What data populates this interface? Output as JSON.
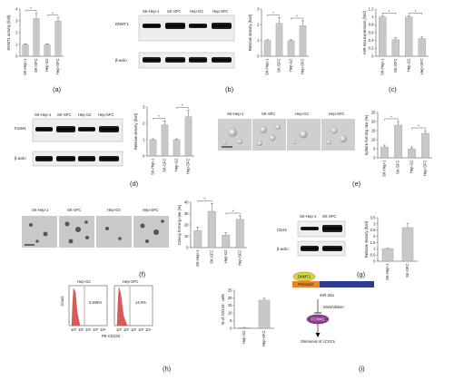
{
  "panels": [
    {
      "id": "a",
      "label": "(a)"
    },
    {
      "id": "b",
      "label": "(b)"
    },
    {
      "id": "c",
      "label": "(c)"
    },
    {
      "id": "d",
      "label": "(d)"
    },
    {
      "id": "e",
      "label": "(e)"
    },
    {
      "id": "f",
      "label": "(f)"
    },
    {
      "id": "g",
      "label": "(g)"
    },
    {
      "id": "h",
      "label": "(h)"
    },
    {
      "id": "i",
      "label": "(i)"
    }
  ],
  "blots": {
    "b": {
      "cols": [
        "SK-Hep-1",
        "SK-SFC",
        "Hep-G2",
        "Hep-SFC"
      ],
      "rows": [
        "DNMT1",
        "β-actin"
      ]
    },
    "d": {
      "cols": [
        "SK-Hep-1",
        "SK-SFC",
        "Hep G2",
        "Hep-SFC"
      ],
      "rows": [
        "FoxM1",
        "β-actin"
      ]
    },
    "g": {
      "cols": [
        "SK-Hep-1",
        "SK-SFC"
      ],
      "rows": [
        "CD44",
        "β-actin"
      ]
    }
  },
  "micrographs": {
    "e": [
      "SK-Hep-1",
      "SK-SFC",
      "Hep-G2",
      "Hep-SFC"
    ],
    "f": [
      "SK-Hep-1",
      "SK-SFC",
      "Hep-G2",
      "Hep-SFC"
    ]
  },
  "flow": {
    "panels": [
      {
        "title": "Hep-G2",
        "percent": "0.848%"
      },
      {
        "title": "Hep-SFC",
        "percent": "14.0%"
      }
    ],
    "ylabel": "Count",
    "xlabel": "PE-CD133",
    "ticks": [
      "10⁰",
      "10¹",
      "10²",
      "10³",
      "10⁴"
    ]
  },
  "diagram": {
    "dnmt1": "DNMT1",
    "promoter": "Promoter",
    "mir": "miR-34a",
    "disinhibition": "Disinhibition",
    "foxm1": "FOXM1",
    "outcome": "Stemness of LCSCs"
  },
  "colors": {
    "bar": "#c8c8c8",
    "promoter": "#e8832a",
    "gene": "#2c3e8f",
    "dnmt1": "#d8d33a",
    "foxm1": "#8e3a8e",
    "hist": "#d85b5b"
  },
  "chart_data": [
    {
      "panel": "a",
      "type": "bar",
      "categories": [
        "SK-Hep-1",
        "SK-SFC",
        "Hep-G2",
        "Hep-SFC"
      ],
      "values": [
        1.0,
        3.2,
        1.0,
        3.0
      ],
      "errors": [
        0.05,
        0.45,
        0.05,
        0.25
      ],
      "ylabel": "DNMT1 activity (fold)",
      "ylim": [
        0,
        4
      ],
      "yticks": [
        0,
        1,
        2,
        3,
        4
      ],
      "sig": [
        [
          0,
          1
        ],
        [
          2,
          3
        ]
      ]
    },
    {
      "panel": "b",
      "type": "bar",
      "categories": [
        "SK-Hep-1",
        "SK-SFC",
        "Hep-G2",
        "Hep-SFC"
      ],
      "values": [
        1.0,
        2.1,
        1.0,
        1.95
      ],
      "errors": [
        0.05,
        0.35,
        0.05,
        0.3
      ],
      "ylabel": "Relative density (fold)",
      "ylim": [
        0,
        3
      ],
      "yticks": [
        0,
        1,
        2,
        3
      ],
      "sig": [
        [
          0,
          1
        ],
        [
          2,
          3
        ]
      ]
    },
    {
      "panel": "c",
      "type": "bar",
      "categories": [
        "SK-Hep-1",
        "SK-SFC",
        "Hep-G2",
        "Hep-SFC"
      ],
      "values": [
        1.0,
        0.42,
        1.0,
        0.45
      ],
      "errors": [
        0.03,
        0.05,
        0.03,
        0.04
      ],
      "ylabel": "miR-34a expression (fold)",
      "ylim": [
        0,
        1.2
      ],
      "yticks": [
        0,
        0.2,
        0.4,
        0.6,
        0.8,
        1.0,
        1.2
      ],
      "sig": [
        [
          0,
          1
        ],
        [
          2,
          3
        ]
      ]
    },
    {
      "panel": "d",
      "type": "bar",
      "categories": [
        "SK-Hep-1",
        "SK-SFC",
        "Hep-G2",
        "Hep-SFC"
      ],
      "values": [
        1.0,
        1.9,
        1.0,
        2.4
      ],
      "errors": [
        0.05,
        0.25,
        0.05,
        0.4
      ],
      "ylabel": "Relative density (fold)",
      "ylim": [
        0,
        3
      ],
      "yticks": [
        0,
        1,
        2,
        3
      ],
      "sig": [
        [
          0,
          1
        ],
        [
          2,
          3
        ]
      ]
    },
    {
      "panel": "e",
      "type": "bar",
      "categories": [
        "SK-Hep-1",
        "SK-SFC",
        "Hep-G2",
        "Hep-SFC"
      ],
      "values": [
        6,
        18,
        5,
        13.5
      ],
      "errors": [
        1.0,
        2.0,
        1.0,
        1.5
      ],
      "ylabel": "Sphere forming rate (%)",
      "ylim": [
        0,
        25
      ],
      "yticks": [
        0,
        5,
        10,
        15,
        20,
        25
      ],
      "sig": [
        [
          0,
          1
        ],
        [
          2,
          3
        ]
      ]
    },
    {
      "panel": "f",
      "type": "bar",
      "categories": [
        "SK-Hep-1",
        "SK-SFC",
        "Hep-G2",
        "Hep-SFC"
      ],
      "values": [
        15,
        32,
        11,
        25
      ],
      "errors": [
        3,
        7,
        2,
        3
      ],
      "ylabel": "Colony forming rate (%)",
      "ylim": [
        0,
        40
      ],
      "yticks": [
        0,
        10,
        20,
        30,
        40
      ],
      "sig": [
        [
          0,
          1
        ],
        [
          2,
          3
        ]
      ]
    },
    {
      "panel": "g",
      "type": "bar",
      "categories": [
        "SK-Hep-1",
        "SK-SFC"
      ],
      "values": [
        1.0,
        2.7
      ],
      "errors": [
        0.05,
        0.35
      ],
      "ylabel": "Relative density (fold)",
      "ylim": [
        0,
        3.5
      ],
      "yticks": [
        0,
        0.5,
        1.0,
        1.5,
        2.0,
        2.5,
        3.0,
        3.5
      ],
      "sig": []
    },
    {
      "panel": "h",
      "type": "bar",
      "categories": [
        "Hep G2",
        "Hep-SFC"
      ],
      "values": [
        0.5,
        18.5
      ],
      "errors": [
        0.1,
        1.2
      ],
      "ylabel": "% of CD133⁺ cells",
      "ylim": [
        0,
        25
      ],
      "yticks": [
        0,
        5,
        10,
        15,
        20,
        25
      ],
      "sig": []
    }
  ]
}
